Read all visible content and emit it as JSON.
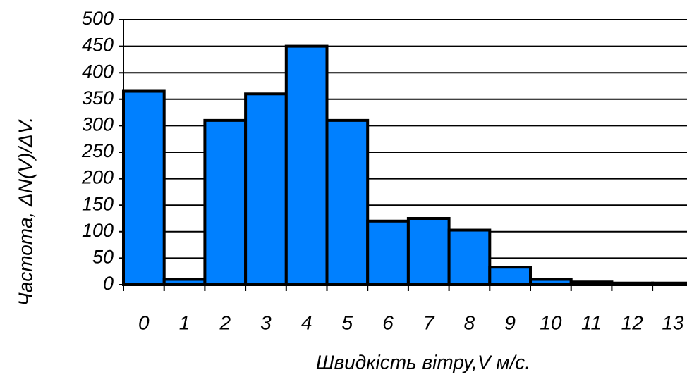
{
  "chart_data": {
    "type": "bar",
    "categories": [
      "0",
      "1",
      "2",
      "3",
      "4",
      "5",
      "6",
      "7",
      "8",
      "9",
      "10",
      "11",
      "12",
      "13"
    ],
    "values": [
      365,
      10,
      310,
      360,
      450,
      310,
      120,
      125,
      103,
      33,
      10,
      5,
      3,
      3
    ],
    "color": "#0080ff",
    "xlabel": "Швидкість вітру,V м/с.",
    "ylabel": "Частота, ΔN(V)/ΔV.",
    "ylim": [
      0,
      500
    ],
    "yticks": [
      0,
      50,
      100,
      150,
      200,
      250,
      300,
      350,
      400,
      450,
      500
    ],
    "grid": true
  }
}
